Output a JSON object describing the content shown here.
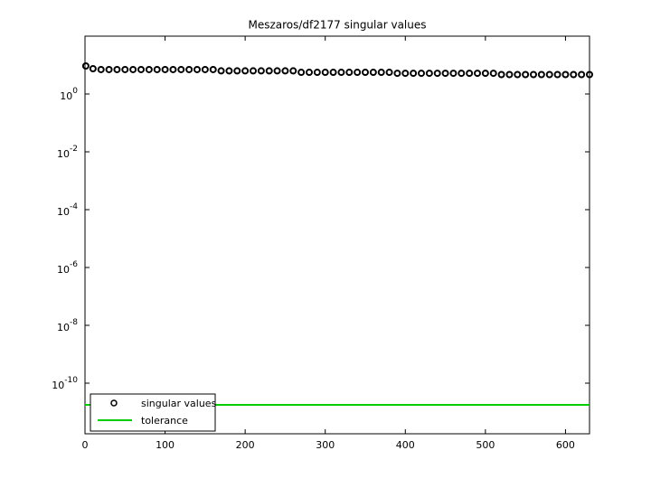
{
  "chart_data": {
    "type": "scatter",
    "title": "Meszaros/df2177 singular values",
    "log_y": true,
    "grid": false,
    "legend": "lower left",
    "xlim": [
      0,
      630
    ],
    "xticks": [
      0,
      100,
      200,
      300,
      400,
      500,
      600
    ],
    "ylim": [
      1.778e-12,
      100
    ],
    "yticks": [
      {
        "value": 1,
        "label": "10^0"
      },
      {
        "value": 0.01,
        "label": "10^-2"
      },
      {
        "value": 0.0001,
        "label": "10^-4"
      },
      {
        "value": 1e-06,
        "label": "10^-6"
      },
      {
        "value": 1e-08,
        "label": "10^-8"
      },
      {
        "value": 1e-10,
        "label": "10^-10"
      }
    ],
    "series": [
      {
        "name": "singular values",
        "color": "#000000",
        "marker": "o",
        "x": [
          1,
          10,
          20,
          30,
          40,
          50,
          60,
          70,
          80,
          90,
          100,
          110,
          120,
          130,
          140,
          150,
          160,
          170,
          180,
          190,
          200,
          210,
          220,
          230,
          240,
          250,
          260,
          270,
          280,
          290,
          300,
          310,
          320,
          330,
          340,
          350,
          360,
          370,
          380,
          390,
          400,
          410,
          420,
          430,
          440,
          450,
          460,
          470,
          480,
          490,
          500,
          510,
          520,
          530,
          540,
          550,
          560,
          570,
          580,
          590,
          600,
          610,
          620,
          630
        ],
        "values": [
          9.3,
          7.5,
          7.0,
          7.0,
          7.0,
          7.0,
          7.0,
          7.0,
          7.0,
          7.0,
          7.0,
          7.0,
          7.0,
          7.0,
          7.0,
          7.0,
          7.0,
          6.3,
          6.3,
          6.3,
          6.3,
          6.3,
          6.3,
          6.3,
          6.3,
          6.3,
          6.3,
          5.6,
          5.6,
          5.6,
          5.6,
          5.6,
          5.6,
          5.6,
          5.6,
          5.6,
          5.6,
          5.6,
          5.6,
          5.2,
          5.2,
          5.2,
          5.2,
          5.2,
          5.2,
          5.2,
          5.2,
          5.2,
          5.2,
          5.2,
          5.2,
          5.2,
          4.7,
          4.7,
          4.7,
          4.7,
          4.7,
          4.7,
          4.7,
          4.7,
          4.7,
          4.7,
          4.7,
          4.7
        ]
      },
      {
        "name": "tolerance",
        "color": "#00cc00",
        "marker": "line",
        "x": [
          0,
          630
        ],
        "values": [
          1.78e-11,
          1.78e-11
        ]
      }
    ]
  }
}
